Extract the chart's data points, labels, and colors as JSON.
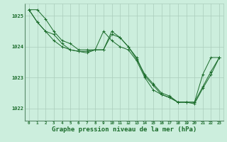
{
  "background_color": "#cceedd",
  "grid_color": "#aaccbb",
  "line_color": "#1a6b2a",
  "xlabel": "Graphe pression niveau de la mer (hPa)",
  "xlabel_fontsize": 6.5,
  "ylim": [
    1021.6,
    1025.4
  ],
  "xlim": [
    -0.5,
    23.5
  ],
  "yticks": [
    1022,
    1023,
    1024,
    1025
  ],
  "xticks": [
    0,
    1,
    2,
    3,
    4,
    5,
    6,
    7,
    8,
    9,
    10,
    11,
    12,
    13,
    14,
    15,
    16,
    17,
    18,
    19,
    20,
    21,
    22,
    23
  ],
  "series": [
    [
      1025.2,
      1025.2,
      1024.9,
      1024.5,
      1024.2,
      1024.1,
      1023.9,
      1023.9,
      1023.9,
      1023.9,
      1024.4,
      1024.3,
      1024.0,
      1023.6,
      1023.1,
      1022.8,
      1022.5,
      1022.4,
      1022.2,
      1022.2,
      1022.2,
      1023.1,
      1023.65,
      1023.65
    ],
    [
      1025.2,
      1024.8,
      1024.5,
      1024.2,
      1024.0,
      1023.9,
      1023.85,
      1023.8,
      1023.9,
      1024.5,
      1024.2,
      1024.0,
      1023.9,
      1023.55,
      1023.0,
      1022.6,
      1022.45,
      1022.35,
      1022.2,
      1022.2,
      1022.2,
      1022.7,
      1023.2,
      1023.65
    ],
    [
      1025.2,
      1024.8,
      1024.5,
      1024.4,
      1024.1,
      1023.9,
      1023.85,
      1023.85,
      1023.9,
      1023.9,
      1024.5,
      1024.3,
      1024.0,
      1023.65,
      1023.05,
      1022.75,
      1022.45,
      1022.35,
      1022.2,
      1022.2,
      1022.15,
      1022.65,
      1023.1,
      1023.65
    ]
  ]
}
